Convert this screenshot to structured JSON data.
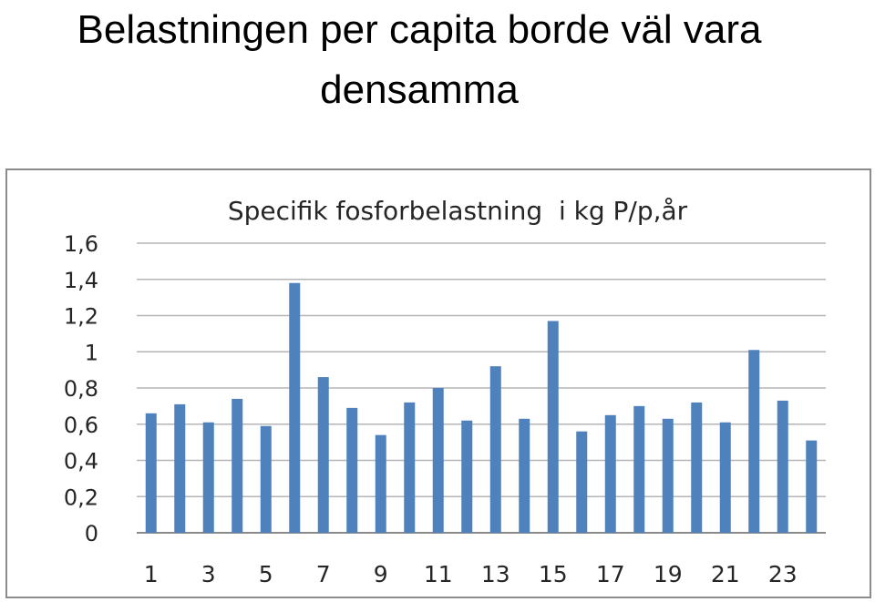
{
  "slide": {
    "title": "Belastningen per capita borde väl vara densamma"
  },
  "chart_data": {
    "type": "bar",
    "title": "Specifik fosforbelastning  i kg P/p,år",
    "xlabel": "",
    "ylabel": "",
    "ylim": [
      0,
      1.6
    ],
    "grid": true,
    "legend": "none",
    "bar_color": "#4f81bd",
    "y_ticks": [
      "0",
      "0,2",
      "0,4",
      "0,6",
      "0,8",
      "1",
      "1,2",
      "1,4",
      "1,6"
    ],
    "x_tick_labels": [
      "1",
      "3",
      "5",
      "7",
      "9",
      "11",
      "13",
      "15",
      "17",
      "19",
      "21",
      "23"
    ],
    "categories": [
      "1",
      "2",
      "3",
      "4",
      "5",
      "6",
      "7",
      "8",
      "9",
      "10",
      "11",
      "12",
      "13",
      "14",
      "15",
      "16",
      "17",
      "18",
      "19",
      "20",
      "21",
      "22",
      "23",
      "24"
    ],
    "values": [
      0.66,
      0.71,
      0.61,
      0.74,
      0.59,
      1.38,
      0.86,
      0.69,
      0.54,
      0.72,
      0.8,
      0.62,
      0.92,
      0.63,
      1.17,
      0.56,
      0.65,
      0.7,
      0.63,
      0.72,
      0.61,
      1.01,
      0.73,
      0.51
    ]
  }
}
